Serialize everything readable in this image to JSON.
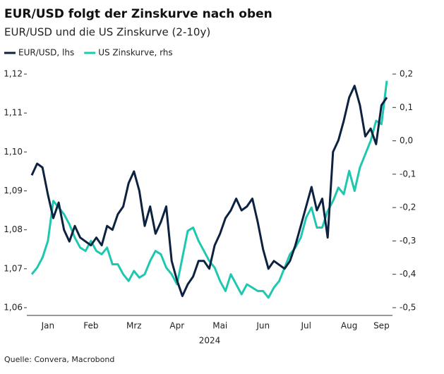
{
  "chart_data": {
    "type": "line",
    "title": "EUR/USD folgt der Zinskurve nach oben",
    "subtitle": "EUR/USD und die US Zinskurve (2-10y)",
    "xlabel": "2024",
    "source": "Quelle: Convera, Macrobond",
    "legend": "top-left",
    "categories": [
      null,
      null,
      null,
      "Jan",
      null,
      null,
      null,
      null,
      null,
      null,
      null,
      "Feb",
      null,
      null,
      null,
      null,
      null,
      null,
      null,
      "Mrz",
      null,
      null,
      null,
      null,
      null,
      null,
      null,
      "Apr",
      null,
      null,
      null,
      null,
      null,
      null,
      null,
      "Mai",
      null,
      null,
      null,
      null,
      null,
      null,
      null,
      "Jun",
      null,
      null,
      null,
      null,
      null,
      null,
      null,
      "Jul",
      null,
      null,
      null,
      null,
      null,
      null,
      null,
      "Aug",
      null,
      null,
      null,
      null,
      null,
      "Sep",
      null
    ],
    "series": [
      {
        "name": "EUR/USD, lhs",
        "color": "#0d2240",
        "axis": "y",
        "values": [
          1.094,
          1.097,
          1.096,
          1.089,
          1.083,
          1.087,
          1.08,
          1.077,
          1.081,
          1.078,
          1.077,
          1.076,
          1.078,
          1.076,
          1.081,
          1.08,
          1.084,
          1.086,
          1.092,
          1.095,
          1.09,
          1.081,
          1.086,
          1.079,
          1.082,
          1.086,
          1.072,
          1.067,
          1.063,
          1.066,
          1.068,
          1.072,
          1.072,
          1.07,
          1.076,
          1.079,
          1.083,
          1.085,
          1.088,
          1.085,
          1.086,
          1.088,
          1.082,
          1.075,
          1.07,
          1.072,
          1.071,
          1.07,
          1.072,
          1.076,
          1.081,
          1.086,
          1.091,
          1.085,
          1.088,
          1.078,
          1.1,
          1.103,
          1.108,
          1.114,
          1.117,
          1.112,
          1.104,
          1.106,
          1.102,
          1.112,
          1.114
        ]
      },
      {
        "name": "US Zinskurve, rhs",
        "color": "#1ec8b0",
        "axis": "y2",
        "values": [
          -0.4,
          -0.38,
          -0.35,
          -0.3,
          -0.18,
          -0.2,
          -0.22,
          -0.25,
          -0.29,
          -0.32,
          -0.33,
          -0.3,
          -0.33,
          -0.34,
          -0.32,
          -0.37,
          -0.37,
          -0.4,
          -0.42,
          -0.39,
          -0.41,
          -0.4,
          -0.36,
          -0.33,
          -0.34,
          -0.38,
          -0.4,
          -0.43,
          -0.35,
          -0.27,
          -0.26,
          -0.3,
          -0.33,
          -0.36,
          -0.38,
          -0.42,
          -0.45,
          -0.4,
          -0.43,
          -0.46,
          -0.43,
          -0.44,
          -0.45,
          -0.45,
          -0.47,
          -0.44,
          -0.42,
          -0.38,
          -0.34,
          -0.32,
          -0.29,
          -0.23,
          -0.2,
          -0.26,
          -0.26,
          -0.21,
          -0.18,
          -0.14,
          -0.16,
          -0.09,
          -0.15,
          -0.08,
          -0.04,
          0.0,
          0.06,
          0.05,
          0.18
        ]
      }
    ],
    "ylim": [
      1.06,
      1.12
    ],
    "yticks": [
      {
        "value": 1.06,
        "label": "1,06"
      },
      {
        "value": 1.07,
        "label": "1,07"
      },
      {
        "value": 1.08,
        "label": "1,08"
      },
      {
        "value": 1.09,
        "label": "1,09"
      },
      {
        "value": 1.1,
        "label": "1,10"
      },
      {
        "value": 1.11,
        "label": "1,11"
      },
      {
        "value": 1.12,
        "label": "1,12"
      }
    ],
    "y2lim": [
      -0.5,
      0.2
    ],
    "y2ticks": [
      {
        "value": -0.5,
        "label": "-0,5"
      },
      {
        "value": -0.4,
        "label": "-0,4"
      },
      {
        "value": -0.3,
        "label": "-0,3"
      },
      {
        "value": -0.2,
        "label": "-0,2"
      },
      {
        "value": -0.1,
        "label": "-0,1"
      },
      {
        "value": 0,
        "label": "0,0"
      },
      {
        "value": 0.1,
        "label": "0,1"
      },
      {
        "value": 0.2,
        "label": "0,2"
      }
    ],
    "grid": false
  }
}
